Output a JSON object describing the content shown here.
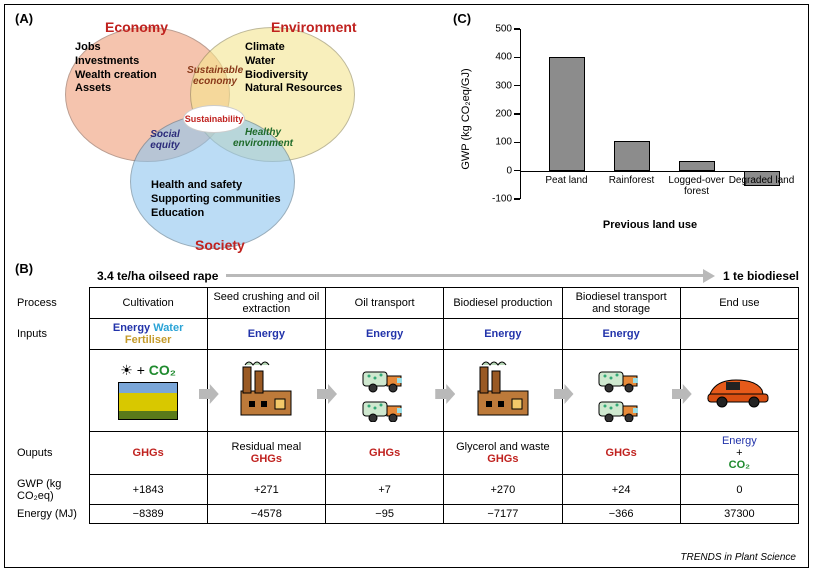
{
  "panelA": {
    "label": "(A)",
    "economy": {
      "title": "Economy",
      "items": [
        "Jobs",
        "Investments",
        "Wealth creation",
        "Assets"
      ],
      "color": "#ef9d7a"
    },
    "environment": {
      "title": "Environment",
      "items": [
        "Climate",
        "Water",
        "Biodiversity",
        "Natural Resources"
      ],
      "color": "#f5e690"
    },
    "society": {
      "title": "Society",
      "items": [
        "Health and safety",
        "Supporting communities",
        "Education"
      ],
      "color": "#8ec6ef"
    },
    "overlaps": {
      "econ_env": "Sustainable economy",
      "econ_soc": "Social equity",
      "env_soc": "Healthy environment",
      "center": "Sustainability"
    },
    "title_color": "#c0221f"
  },
  "panelC": {
    "label": "(C)",
    "ylabel": "GWP (kg CO₂eq/GJ)",
    "xlabel": "Previous land use",
    "ylim": [
      -100,
      500
    ],
    "ytick_step": 100,
    "categories": [
      "Peat land",
      "Rainforest",
      "Logged-over forest",
      "Degraded land"
    ],
    "values": [
      400,
      105,
      35,
      -55
    ],
    "bar_color": "#8c8c8c"
  },
  "panelB": {
    "label": "(B)",
    "header_left": "3.4 te/ha oilseed rape",
    "header_right": "1 te biodiesel",
    "row_labels": {
      "process": "Process",
      "inputs": "Inputs",
      "outputs": "Ouputs",
      "gwp": "GWP (kg CO₂eq)",
      "energy": "Energy (MJ)"
    },
    "steps": [
      {
        "process": "Cultivation",
        "inputs": [
          {
            "t": "Energy",
            "c": "en"
          },
          {
            "t": "Water",
            "c": "wa"
          },
          {
            "t": "Fertiliser",
            "c": "fe"
          }
        ],
        "extra_inputs": "☀ + CO₂",
        "outputs": [
          {
            "t": "GHGs",
            "c": "ghg"
          }
        ],
        "gwp": "+1843",
        "energy": "−8389",
        "icon": "field"
      },
      {
        "process": "Seed crushing and oil extraction",
        "inputs": [
          {
            "t": "Energy",
            "c": "en"
          }
        ],
        "outputs": [
          {
            "t": "Residual meal",
            "c": ""
          },
          {
            "t": "GHGs",
            "c": "ghg"
          }
        ],
        "gwp": "+271",
        "energy": "−4578",
        "icon": "factory"
      },
      {
        "process": "Oil transport",
        "inputs": [
          {
            "t": "Energy",
            "c": "en"
          }
        ],
        "outputs": [
          {
            "t": "GHGs",
            "c": "ghg"
          }
        ],
        "gwp": "+7",
        "energy": "−95",
        "icon": "trucks"
      },
      {
        "process": "Biodiesel production",
        "inputs": [
          {
            "t": "Energy",
            "c": "en"
          }
        ],
        "outputs": [
          {
            "t": "Glycerol and waste",
            "c": ""
          },
          {
            "t": "GHGs",
            "c": "ghg"
          }
        ],
        "gwp": "+270",
        "energy": "−7177",
        "icon": "factory"
      },
      {
        "process": "Biodiesel transport and storage",
        "inputs": [
          {
            "t": "Energy",
            "c": "en"
          }
        ],
        "outputs": [
          {
            "t": "GHGs",
            "c": "ghg"
          }
        ],
        "gwp": "+24",
        "energy": "−366",
        "icon": "trucks"
      },
      {
        "process": "End use",
        "inputs": [],
        "outputs": [
          {
            "t": "Energy",
            "c": "en"
          },
          {
            "t": " + ",
            "c": ""
          },
          {
            "t": "CO₂",
            "c": "co2"
          }
        ],
        "gwp": "0",
        "energy": "37300",
        "icon": "car"
      }
    ]
  },
  "journal": "TRENDS in Plant Science"
}
